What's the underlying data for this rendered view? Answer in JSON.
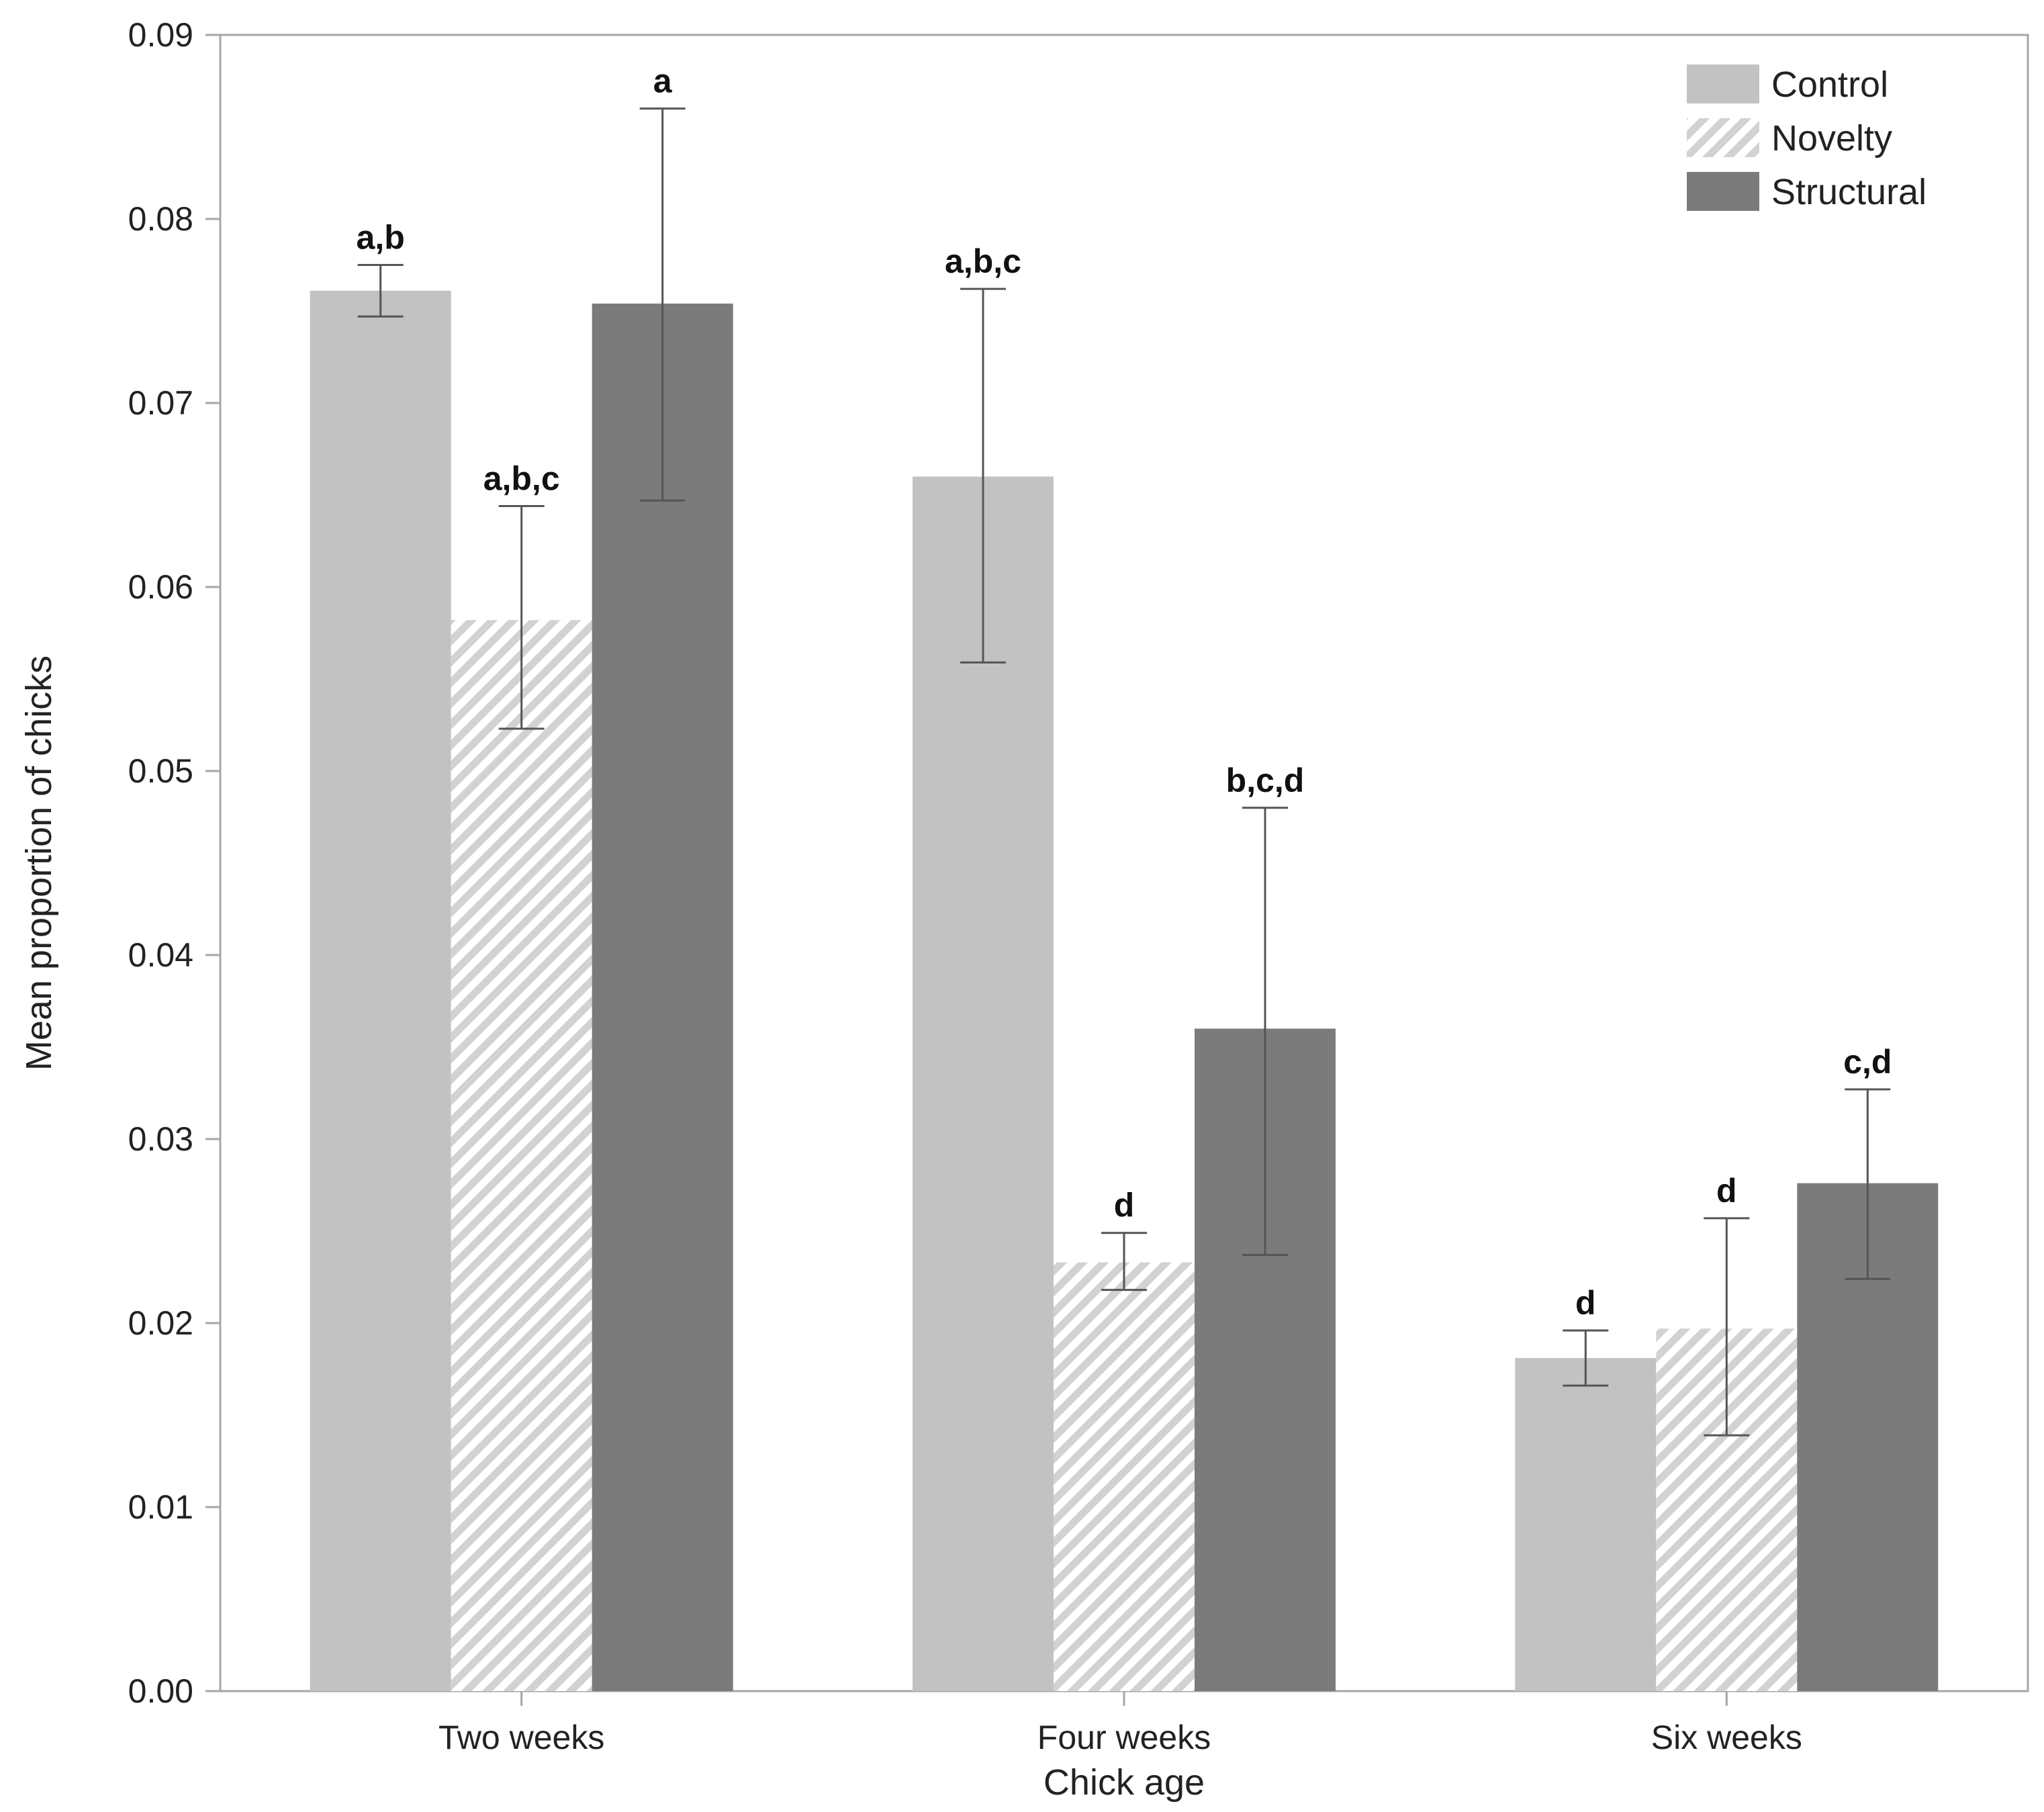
{
  "chart_data": {
    "type": "bar",
    "title": "",
    "xlabel": "Chick age",
    "ylabel": "Mean proportion of chicks",
    "ylim": [
      0,
      0.09
    ],
    "yticks": [
      "0.00",
      "0.01",
      "0.02",
      "0.03",
      "0.04",
      "0.05",
      "0.06",
      "0.07",
      "0.08",
      "0.09"
    ],
    "categories": [
      "Two weeks",
      "Four weeks",
      "Six weeks"
    ],
    "legend_position": "top-right",
    "series": [
      {
        "name": "Control",
        "style": "solid-light",
        "color": "#c2c2c2",
        "values": [
          0.0761,
          0.066,
          0.0181
        ],
        "error_low": [
          0.0747,
          0.0559,
          0.0166
        ],
        "error_high": [
          0.0775,
          0.0762,
          0.0196
        ],
        "letters": [
          "a,b",
          "a,b,c",
          "d"
        ]
      },
      {
        "name": "Novelty",
        "style": "hatched",
        "color": "#d2d2d2",
        "values": [
          0.0582,
          0.0233,
          0.0197
        ],
        "error_low": [
          0.0523,
          0.0218,
          0.0139
        ],
        "error_high": [
          0.0644,
          0.0249,
          0.0257
        ],
        "letters": [
          "a,b,c",
          "d",
          "d"
        ]
      },
      {
        "name": "Structural",
        "style": "solid-dark",
        "color": "#7b7b7b",
        "values": [
          0.0754,
          0.036,
          0.0276
        ],
        "error_low": [
          0.0647,
          0.0237,
          0.0224
        ],
        "error_high": [
          0.086,
          0.048,
          0.0327
        ],
        "letters": [
          "a",
          "b,c,d",
          "c,d"
        ]
      }
    ]
  }
}
